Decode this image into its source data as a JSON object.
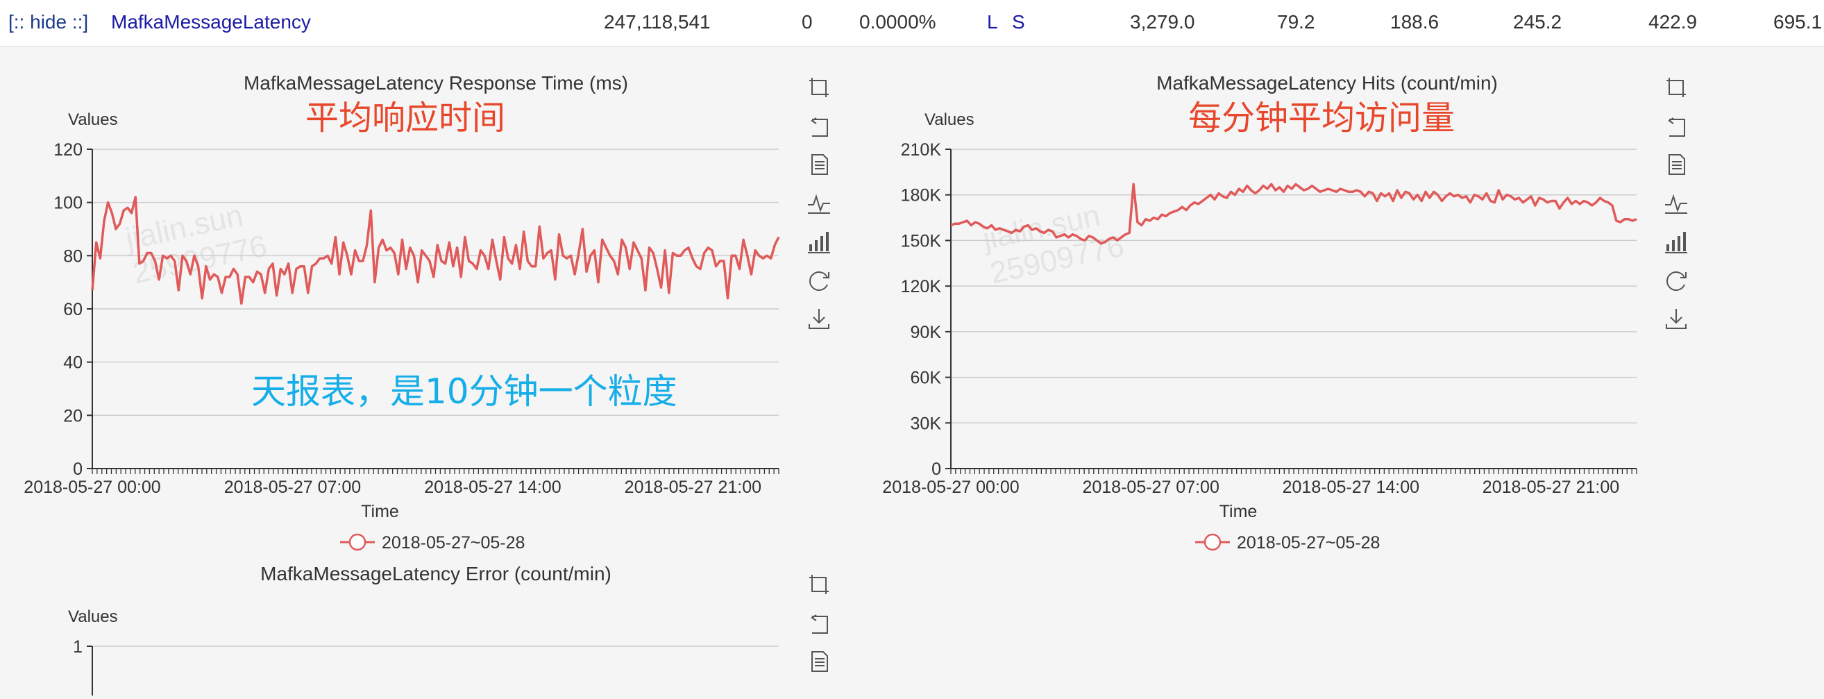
{
  "header": {
    "hide_label": "[:: hide ::]",
    "name": "MafkaMessageLatency",
    "count": "247,118,541",
    "failures": "0",
    "fail_pct": "0.0000%",
    "link_l": "L",
    "link_s": "S",
    "max": "3,279.0",
    "avg": "79.2",
    "p1": "188.6",
    "p2": "245.2",
    "p3": "422.9",
    "p4": "695.1"
  },
  "colors": {
    "series": "#e05a5a",
    "grid": "#cccccc",
    "axis": "#333333",
    "annotation_red": "#e8472b",
    "annotation_blue": "#16aee8"
  },
  "annotations": {
    "response_cn": "平均响应时间",
    "hits_cn": "每分钟平均访问量",
    "note_cn": "天报表，是10分钟一个粒度"
  },
  "watermark": {
    "line1": "jialin.sun",
    "line2": "25909776"
  },
  "toolbox_icons": [
    "zoom-icon",
    "zoom-reset-icon",
    "data-view-icon",
    "line-chart-icon",
    "bar-chart-icon",
    "restore-icon",
    "download-icon"
  ],
  "chart_data": [
    {
      "type": "line",
      "title": "MafkaMessageLatency Response Time (ms)",
      "ylabel": "Values",
      "xlabel": "Time",
      "ylim": [
        0,
        120
      ],
      "yticks": [
        0,
        20,
        40,
        60,
        80,
        100,
        120
      ],
      "ytick_labels": [
        "0",
        "20",
        "40",
        "60",
        "80",
        "100",
        "120"
      ],
      "xtick_labels": [
        "2018-05-27 00:00",
        "2018-05-27 07:00",
        "2018-05-27 14:00",
        "2018-05-27 21:00"
      ],
      "legend": "2018-05-27~05-28",
      "legend_position": "bottom",
      "grid": true,
      "series": [
        {
          "name": "2018-05-27~05-28",
          "values": [
            67,
            85,
            79,
            93,
            100,
            96,
            90,
            92,
            97,
            98,
            96,
            102,
            77,
            78,
            81,
            81,
            78,
            71,
            80,
            79,
            80,
            78,
            67,
            80,
            78,
            73,
            80,
            76,
            64,
            76,
            71,
            73,
            72,
            66,
            72,
            72,
            75,
            73,
            62,
            72,
            72,
            70,
            74,
            73,
            66,
            75,
            77,
            65,
            75,
            73,
            77,
            66,
            75,
            76,
            76,
            66,
            76,
            77,
            79,
            79,
            80,
            77,
            87,
            73,
            85,
            80,
            73,
            82,
            78,
            78,
            84,
            97,
            70,
            83,
            86,
            82,
            83,
            81,
            73,
            86,
            75,
            83,
            80,
            70,
            82,
            80,
            78,
            72,
            84,
            78,
            77,
            85,
            76,
            83,
            72,
            87,
            78,
            77,
            75,
            82,
            80,
            75,
            86,
            78,
            71,
            87,
            79,
            77,
            84,
            75,
            89,
            78,
            76,
            76,
            91,
            79,
            81,
            82,
            71,
            88,
            80,
            79,
            80,
            73,
            81,
            90,
            74,
            80,
            82,
            70,
            86,
            83,
            80,
            78,
            73,
            86,
            83,
            75,
            85,
            82,
            79,
            67,
            83,
            81,
            75,
            68,
            82,
            66,
            81,
            80,
            80,
            82,
            83,
            79,
            76,
            75,
            81,
            83,
            82,
            76,
            78,
            78,
            64,
            80,
            80,
            75,
            86,
            80,
            73,
            82,
            80,
            79,
            80,
            79,
            84,
            87
          ]
        }
      ]
    },
    {
      "type": "line",
      "title": "MafkaMessageLatency Hits (count/min)",
      "ylabel": "Values",
      "xlabel": "Time",
      "ylim": [
        0,
        210000
      ],
      "yticks": [
        0,
        30000,
        60000,
        90000,
        120000,
        150000,
        180000,
        210000
      ],
      "ytick_labels": [
        "0",
        "30K",
        "60K",
        "90K",
        "120K",
        "150K",
        "180K",
        "210K"
      ],
      "xtick_labels": [
        "2018-05-27 00:00",
        "2018-05-27 07:00",
        "2018-05-27 14:00",
        "2018-05-27 21:00"
      ],
      "legend": "2018-05-27~05-28",
      "legend_position": "bottom",
      "grid": true,
      "series": [
        {
          "name": "2018-05-27~05-28",
          "values": [
            160000,
            161000,
            161000,
            162000,
            163000,
            160000,
            162000,
            161000,
            159000,
            158000,
            160000,
            157000,
            158000,
            157000,
            156000,
            155000,
            157000,
            156000,
            159000,
            160000,
            157000,
            158000,
            156000,
            155000,
            157000,
            156000,
            152000,
            153000,
            154000,
            152000,
            154000,
            153000,
            151000,
            150000,
            153000,
            152000,
            150000,
            148000,
            149000,
            151000,
            152000,
            150000,
            152000,
            154000,
            155000,
            187000,
            162000,
            160000,
            164000,
            163000,
            165000,
            164000,
            167000,
            166000,
            168000,
            169000,
            170000,
            172000,
            170000,
            173000,
            175000,
            174000,
            176000,
            178000,
            180000,
            177000,
            181000,
            179000,
            178000,
            182000,
            180000,
            184000,
            182000,
            186000,
            183000,
            181000,
            183000,
            186000,
            184000,
            187000,
            183000,
            185000,
            182000,
            186000,
            184000,
            187000,
            185000,
            183000,
            184000,
            186000,
            184000,
            182000,
            183000,
            184000,
            183000,
            182000,
            184000,
            183000,
            182000,
            182000,
            183000,
            182000,
            179000,
            182000,
            181000,
            176000,
            181000,
            179000,
            181000,
            176000,
            183000,
            178000,
            182000,
            181000,
            177000,
            180000,
            176000,
            182000,
            178000,
            182000,
            180000,
            176000,
            179000,
            181000,
            179000,
            180000,
            178000,
            179000,
            175000,
            180000,
            179000,
            177000,
            181000,
            176000,
            175000,
            183000,
            177000,
            180000,
            179000,
            177000,
            178000,
            175000,
            177000,
            179000,
            173000,
            178000,
            177000,
            175000,
            176000,
            176000,
            171000,
            175000,
            178000,
            174000,
            176000,
            174000,
            176000,
            175000,
            173000,
            175000,
            178000,
            176000,
            175000,
            173000,
            163000,
            162000,
            164000,
            164000,
            163000,
            164000
          ]
        }
      ]
    },
    {
      "type": "line",
      "title": "MafkaMessageLatency Error (count/min)",
      "ylabel": "Values",
      "ylim": [
        0,
        1
      ],
      "yticks": [
        1
      ],
      "ytick_labels": [
        "1"
      ],
      "grid": true,
      "series": []
    }
  ]
}
